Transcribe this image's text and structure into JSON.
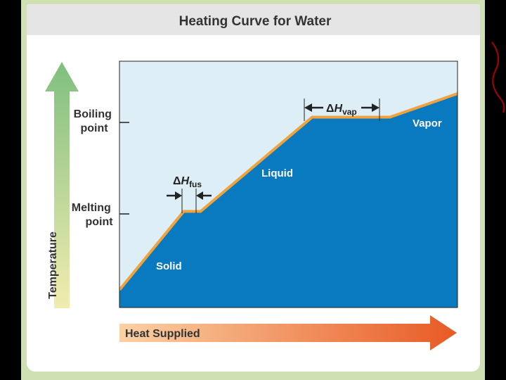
{
  "chart_data": {
    "type": "line",
    "title": "Heating Curve for Water",
    "xlabel": "Heat Supplied",
    "ylabel": "Temperature",
    "y_ticks": [
      {
        "line1": "Boiling",
        "line2": "point"
      },
      {
        "line1": "Melting",
        "line2": "point"
      }
    ],
    "phase_labels": [
      "Solid",
      "Liquid",
      "Vapor"
    ],
    "annotations": {
      "fusion": {
        "delta": "Δ",
        "var": "H",
        "sub": "fus"
      },
      "vaporization": {
        "delta": "Δ",
        "var": "H",
        "sub": "vap"
      }
    },
    "curve": {
      "x": [
        0,
        19,
        24,
        57,
        80,
        100
      ],
      "y": [
        0,
        40,
        40,
        88,
        88,
        100
      ]
    },
    "xlim": [
      0,
      100
    ],
    "ylim": [
      0,
      100
    ],
    "grid": false,
    "colors": {
      "frame": "#cfe0b2",
      "title_band": "#e5e5e5",
      "plot_bg": "#ddeef7",
      "fill": "#0a7ac0",
      "curve": "#f0a23c",
      "temp_arrow_top": "#7fbf7f",
      "temp_arrow_bottom": "#f2ecb0",
      "heat_arrow_left": "#fbd1a4",
      "heat_arrow_right": "#e85a24"
    }
  }
}
